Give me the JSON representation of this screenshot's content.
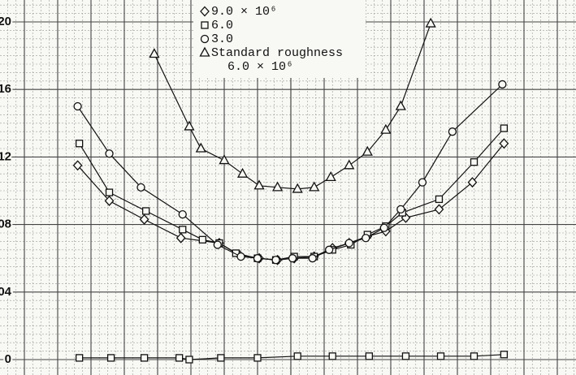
{
  "chart_data": {
    "type": "line",
    "xlim": [
      -1.6,
      1.6
    ],
    "ylim": [
      0,
      20
    ],
    "yticks": [
      {
        "value": 0,
        "label": "0"
      },
      {
        "value": 4,
        "label": "04"
      },
      {
        "value": 8,
        "label": "08"
      },
      {
        "value": 12,
        "label": "12"
      },
      {
        "value": 16,
        "label": "16"
      },
      {
        "value": 20,
        "label": "20"
      }
    ],
    "grid": true,
    "legend_note": "6.0 × 10⁶",
    "series": [
      {
        "name": "9.0 × 10⁶",
        "marker": "diamond",
        "color": "#111111",
        "x": [
          -1.28,
          -1.09,
          -0.88,
          -0.66,
          -0.43,
          -0.31,
          -0.19,
          -0.08,
          0.02,
          0.14,
          0.25,
          0.35,
          0.46,
          0.57,
          0.69,
          0.89,
          1.09,
          1.28
        ],
        "values": [
          11.5,
          9.4,
          8.3,
          7.2,
          6.9,
          6.2,
          6.0,
          5.9,
          6.0,
          6.1,
          6.6,
          6.9,
          7.3,
          7.6,
          8.4,
          8.9,
          10.5,
          12.8
        ]
      },
      {
        "name": "6.0",
        "marker": "square",
        "color": "#111111",
        "x": [
          -1.27,
          -1.09,
          -0.87,
          -0.65,
          -0.53,
          -0.43,
          -0.33,
          -0.2,
          -0.09,
          0.02,
          0.14,
          0.25,
          0.36,
          0.46,
          0.57,
          0.67,
          0.89,
          1.1,
          1.28
        ],
        "values": [
          12.8,
          9.9,
          8.8,
          7.7,
          7.1,
          6.9,
          6.3,
          6.0,
          5.9,
          6.1,
          6.1,
          6.5,
          6.8,
          7.4,
          7.9,
          8.7,
          9.5,
          11.7,
          13.7
        ]
      },
      {
        "name": "3.0",
        "marker": "circle",
        "color": "#111111",
        "x": [
          -1.28,
          -1.09,
          -0.9,
          -0.65,
          -0.44,
          -0.3,
          -0.2,
          -0.09,
          0.01,
          0.13,
          0.23,
          0.35,
          0.45,
          0.56,
          0.66,
          0.79,
          0.97,
          1.27
        ],
        "values": [
          15.0,
          12.2,
          10.2,
          8.6,
          6.8,
          6.1,
          6.0,
          5.9,
          6.0,
          6.0,
          6.5,
          6.9,
          7.2,
          7.8,
          8.9,
          10.5,
          13.5,
          16.3
        ]
      },
      {
        "name": "Standard roughness",
        "marker": "triangle",
        "color": "#111111",
        "x": [
          -0.82,
          -0.61,
          -0.54,
          -0.4,
          -0.29,
          -0.19,
          -0.08,
          0.04,
          0.14,
          0.24,
          0.35,
          0.46,
          0.57,
          0.66,
          0.84
        ],
        "values": [
          18.1,
          13.8,
          12.5,
          11.8,
          11.0,
          10.3,
          10.2,
          10.1,
          10.2,
          10.8,
          11.5,
          12.3,
          13.6,
          15.0,
          19.9
        ]
      },
      {
        "marker": "square",
        "color": "#111111",
        "x": [
          -1.27,
          -1.08,
          -0.88,
          -0.67,
          -0.61,
          -0.42,
          -0.2,
          0.04,
          0.25,
          0.47,
          0.69,
          0.9,
          1.1,
          1.28
        ],
        "values": [
          0.1,
          0.1,
          0.1,
          0.1,
          0.0,
          0.1,
          0.1,
          0.2,
          0.2,
          0.2,
          0.2,
          0.2,
          0.2,
          0.3
        ]
      }
    ]
  }
}
